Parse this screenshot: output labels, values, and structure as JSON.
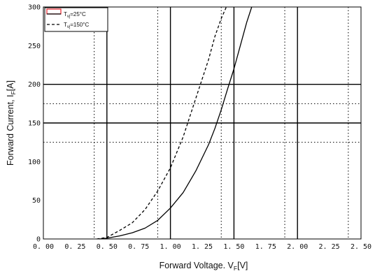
{
  "chart_data": {
    "type": "line",
    "xlabel": "Forward Voltage. V",
    "xlabel_sub": "F",
    "xlabel_unit": "[V]",
    "ylabel": "Forward Current, I",
    "ylabel_sub": "F",
    "ylabel_unit": "[A]",
    "xlim": [
      0.0,
      2.5
    ],
    "ylim": [
      0,
      300
    ],
    "x_ticks": [
      0.0,
      0.25,
      0.5,
      0.75,
      1.0,
      1.25,
      1.5,
      1.75,
      2.0,
      2.25,
      2.5
    ],
    "x_tick_labels": [
      "0. 00",
      "0. 25",
      "0. 50",
      "0. 75",
      "1. 00",
      "1. 25",
      "1. 50",
      "1. 75",
      "2. 00",
      "2. 25",
      "2. 50"
    ],
    "y_ticks": [
      0,
      50,
      100,
      150,
      200,
      250,
      300
    ],
    "y_tick_labels": [
      "0",
      "50",
      "100",
      "150",
      "200",
      "250",
      "300"
    ],
    "grid": {
      "solid_x": [
        0.5,
        1.0,
        1.5,
        2.0
      ],
      "dotted_x": [
        0.4,
        0.9,
        1.4,
        1.9,
        2.4
      ],
      "solid_y": [
        150,
        200
      ],
      "dotted_y": [
        125,
        175
      ]
    },
    "legend_position": "top-left",
    "series": [
      {
        "name": "T",
        "name_sub": "vj",
        "name_suffix": "=25°C",
        "style": "solid",
        "color": "#000000",
        "x": [
          0.44,
          0.5,
          0.6,
          0.7,
          0.8,
          0.9,
          1.0,
          1.1,
          1.2,
          1.3,
          1.35,
          1.4,
          1.45,
          1.5,
          1.55,
          1.6,
          1.64
        ],
        "y": [
          0,
          1,
          4,
          8,
          14,
          24,
          40,
          60,
          88,
          122,
          143,
          167,
          194,
          220,
          250,
          280,
          300
        ]
      },
      {
        "name": "T",
        "name_sub": "vj",
        "name_suffix": "=150°C",
        "style": "dashed",
        "color": "#000000",
        "x": [
          0.42,
          0.5,
          0.6,
          0.7,
          0.8,
          0.9,
          1.0,
          1.1,
          1.2,
          1.3,
          1.35,
          1.4,
          1.44
        ],
        "y": [
          0,
          2,
          11,
          21,
          38,
          62,
          92,
          132,
          182,
          232,
          262,
          285,
          300
        ]
      }
    ],
    "legend_border_color": "#000000",
    "legend_swatch_color": "#e8202a"
  }
}
